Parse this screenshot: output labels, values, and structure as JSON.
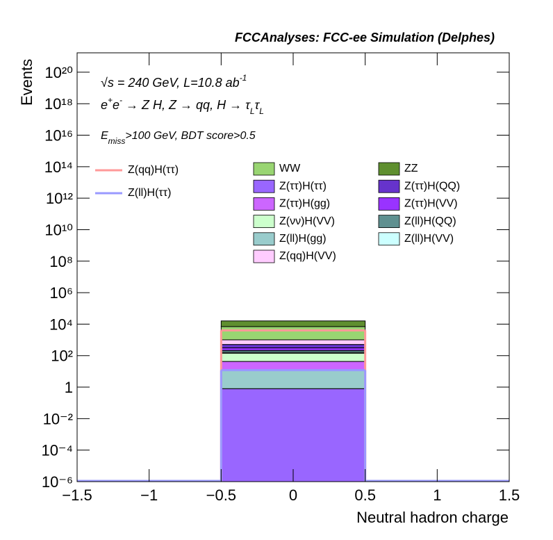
{
  "chart_data": {
    "type": "stacked-histogram",
    "title": "FCCAnalyses: FCC-ee Simulation (Delphes)",
    "xlabel": "Neutral hadron charge",
    "ylabel": "Events",
    "annotations": [
      [
        {
          "text": "√s = 240 GeV, L=10.8 ab"
        },
        {
          "text": "-1",
          "sup": true
        }
      ],
      [
        {
          "text": "e"
        },
        {
          "text": "+",
          "sup": true
        },
        {
          "text": "e"
        },
        {
          "text": "-",
          "sup": true
        },
        {
          "text": " → Z H, Z  → qq, H  → τ"
        },
        {
          "text": "L",
          "sub": true
        },
        {
          "text": "τ"
        },
        {
          "text": "L",
          "sub": true
        }
      ],
      [
        {
          "text": "E"
        },
        {
          "text": "miss",
          "sub": true
        },
        {
          "text": ">100 GeV, BDT score>0.5"
        }
      ]
    ],
    "bins": [
      -0.5,
      0.5
    ],
    "xlim": [
      -1.5,
      1.5
    ],
    "xticks": [
      {
        "value": -1.5,
        "label": "−1.5"
      },
      {
        "value": -1,
        "label": "−1"
      },
      {
        "value": -0.5,
        "label": "−0.5"
      },
      0,
      0.5,
      1,
      1.5
    ],
    "ylim": [
      1e-06,
      1.7e+21
    ],
    "log_y": true,
    "yticks": [
      {
        "value": 1e-06,
        "label": "10⁻⁶"
      },
      {
        "value": 0.0001,
        "label": "10⁻⁴"
      },
      {
        "value": 0.01,
        "label": "10⁻²"
      },
      1,
      {
        "value": 100,
        "label": "10²"
      },
      {
        "value": 10000.0,
        "label": "10⁴"
      },
      {
        "value": 1000000.0,
        "label": "10⁶"
      },
      {
        "value": 100000000.0,
        "label": "10⁸"
      },
      {
        "value": 10000000000.0,
        "label": "10¹⁰"
      },
      {
        "value": 1000000000000.0,
        "label": "10¹²"
      },
      {
        "value": 100000000000000.0,
        "label": "10¹⁴"
      },
      {
        "value": 1e+16,
        "label": "10¹⁶"
      },
      {
        "value": 1e+18,
        "label": "10¹⁸"
      },
      {
        "value": 1e+20,
        "label": "10²⁰"
      }
    ],
    "series": [
      {
        "name": "Z(ττ)H(ττ)",
        "color": "#9966ff",
        "values": [
          0.8
        ]
      },
      {
        "name": "Z(ll)H(gg)",
        "color": "#99cccc",
        "values": [
          12
        ]
      },
      {
        "name": "Z(ττ)H(gg)",
        "color": "#cc66ff",
        "values": [
          30
        ]
      },
      {
        "name": "Z(νν)H(VV)",
        "color": "#ccffcc",
        "values": [
          100
        ]
      },
      {
        "name": "Z(ll)H(VV)",
        "color": "#ccffff",
        "values": [
          20
        ]
      },
      {
        "name": "Z(ll)H(QQ)",
        "color": "#5f9090",
        "values": [
          50
        ]
      },
      {
        "name": "Z(ττ)H(VV)",
        "color": "#9933ff",
        "values": [
          100
        ]
      },
      {
        "name": "Z(ττ)H(QQ)",
        "color": "#6633cc",
        "values": [
          200
        ]
      },
      {
        "name": "Z(qq)H(VV)",
        "color": "#ffccff",
        "values": [
          500
        ]
      },
      {
        "name": "WW",
        "color": "#99d572",
        "values": [
          6000
        ]
      },
      {
        "name": "ZZ",
        "color": "#5f8f2f",
        "values": [
          9000
        ]
      }
    ],
    "line_series": [
      {
        "name": "Z(qq)H(ττ)",
        "color": "#ff9999",
        "values": [
          4000
        ]
      },
      {
        "name": "Z(ll)H(ττ)",
        "color": "#9999ff",
        "values": [
          12
        ]
      }
    ]
  }
}
